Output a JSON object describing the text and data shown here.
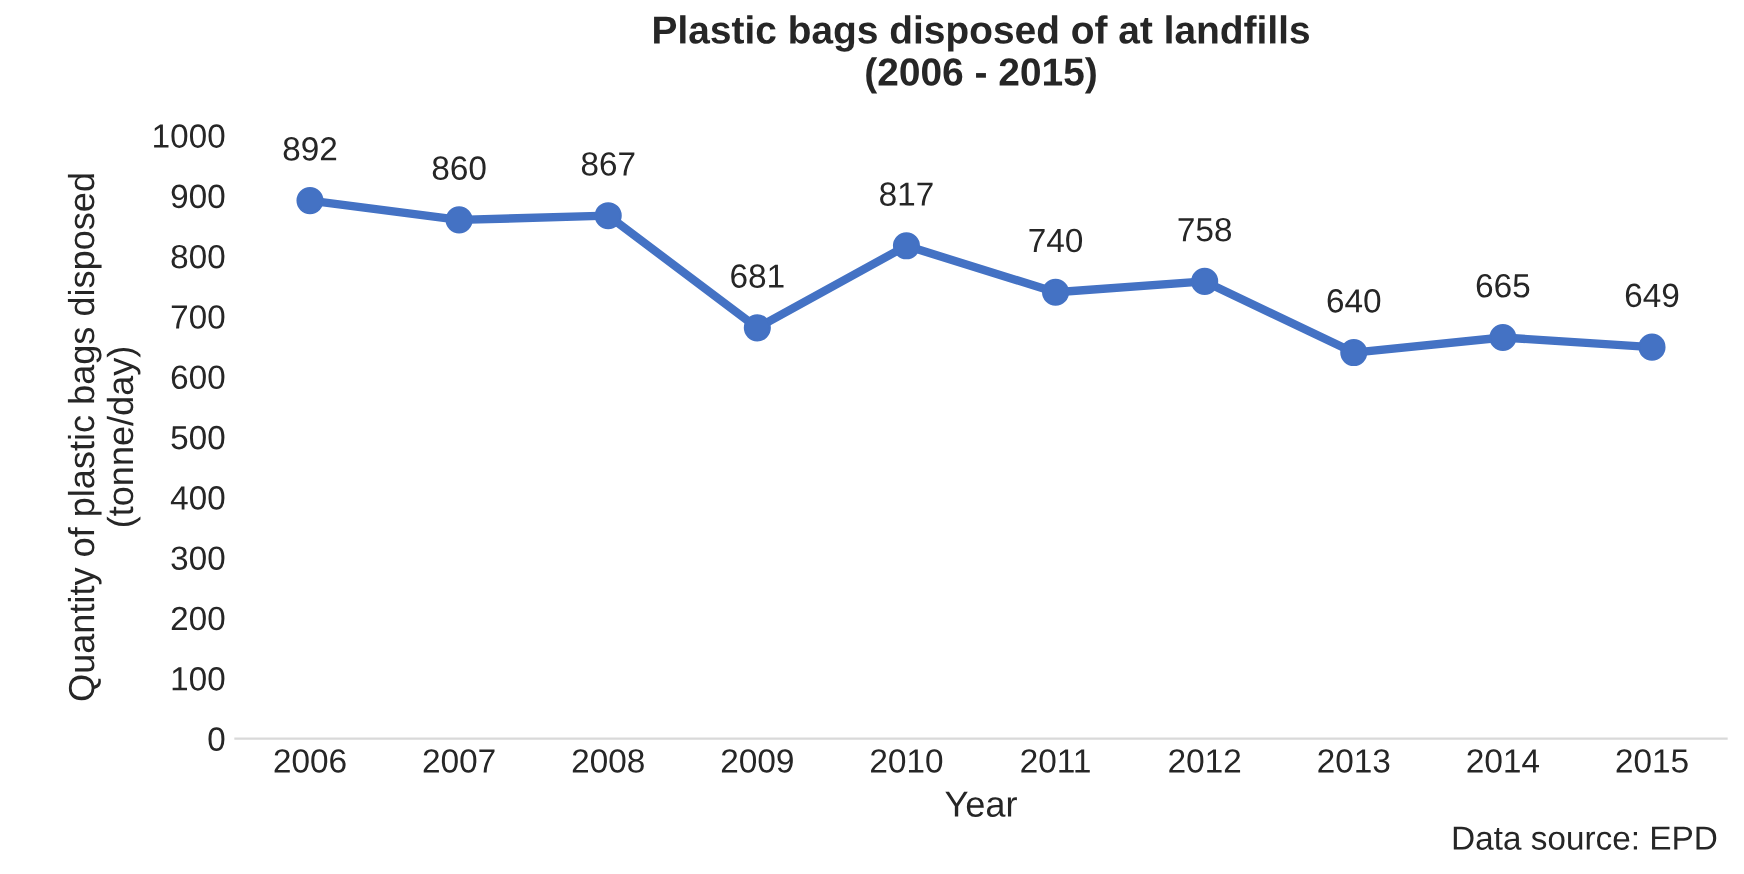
{
  "chart_data": {
    "type": "line",
    "title": "Plastic bags disposed of at landfills\n(2006 - 2015)",
    "xlabel": "Year",
    "ylabel": "Quantity of plastic bags disposed\n(tonne/day)",
    "categories": [
      "2006",
      "2007",
      "2008",
      "2009",
      "2010",
      "2011",
      "2012",
      "2013",
      "2014",
      "2015"
    ],
    "series": [
      {
        "color": "#4472c4",
        "values": [
          892,
          860,
          867,
          681,
          817,
          740,
          758,
          640,
          665,
          649
        ]
      }
    ],
    "ylim": [
      0,
      1000
    ],
    "yticks": [
      0,
      100,
      200,
      300,
      400,
      500,
      600,
      700,
      800,
      900,
      1000
    ],
    "data_labels": true,
    "marker": "circle",
    "line_style": "solid",
    "grid": false,
    "legend": false,
    "annotations": [
      "Data source: EPD"
    ]
  }
}
